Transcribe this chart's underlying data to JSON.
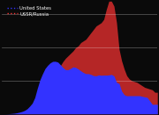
{
  "background_color": "#0a0a0a",
  "us_color": "#3333ff",
  "ussr_color": "#ff3333",
  "us_alpha": 1.0,
  "ussr_alpha": 0.7,
  "legend_us_label": "United States",
  "legend_ussr_label": "USSR/Russia",
  "years": [
    1945,
    1946,
    1947,
    1948,
    1949,
    1950,
    1951,
    1952,
    1953,
    1954,
    1955,
    1956,
    1957,
    1958,
    1959,
    1960,
    1961,
    1962,
    1963,
    1964,
    1965,
    1966,
    1967,
    1968,
    1969,
    1970,
    1971,
    1972,
    1973,
    1974,
    1975,
    1976,
    1977,
    1978,
    1979,
    1980,
    1981,
    1982,
    1983,
    1984,
    1985,
    1986,
    1987,
    1988,
    1989,
    1990,
    1991,
    1992,
    1993,
    1994,
    1995,
    1996,
    1997,
    1998,
    1999,
    2000,
    2001,
    2002,
    2003,
    2004,
    2005,
    2006
  ],
  "us_stockpile": [
    6,
    11,
    32,
    110,
    235,
    370,
    640,
    1005,
    1436,
    2063,
    3057,
    4618,
    6444,
    9822,
    15468,
    20434,
    24111,
    27297,
    29249,
    30751,
    31642,
    31700,
    31255,
    29664,
    27945,
    26662,
    26602,
    27387,
    28335,
    28009,
    27052,
    25956,
    24943,
    24243,
    24243,
    23764,
    23049,
    22937,
    23454,
    23268,
    23368,
    23317,
    23490,
    23777,
    22869,
    19008,
    18306,
    13731,
    11536,
    10886,
    10953,
    10953,
    10953,
    10953,
    10953,
    10577,
    10240,
    9938,
    7769,
    5735,
    5735,
    5735
  ],
  "ussr_stockpile": [
    1,
    1,
    3,
    5,
    10,
    25,
    50,
    100,
    200,
    600,
    1200,
    2100,
    3100,
    5000,
    6500,
    8000,
    10000,
    11500,
    13500,
    16000,
    18000,
    22000,
    26000,
    29000,
    31500,
    33500,
    35000,
    36500,
    38000,
    40000,
    41000,
    43000,
    44000,
    45000,
    47000,
    49000,
    51000,
    53000,
    54000,
    55000,
    57000,
    63000,
    68000,
    68000,
    65000,
    55000,
    39000,
    32000,
    27000,
    23000,
    21000,
    20000,
    19500,
    19000,
    18000,
    17000,
    16000,
    15500,
    15000,
    14500,
    13000,
    13000
  ],
  "xlim": [
    1945,
    2006
  ],
  "ylim": [
    0,
    68000
  ],
  "grid_color": "#ffffff",
  "grid_alpha": 0.35,
  "grid_linewidth": 0.5,
  "legend_fontsize": 3.8,
  "legend_text_color": "#ffffff"
}
